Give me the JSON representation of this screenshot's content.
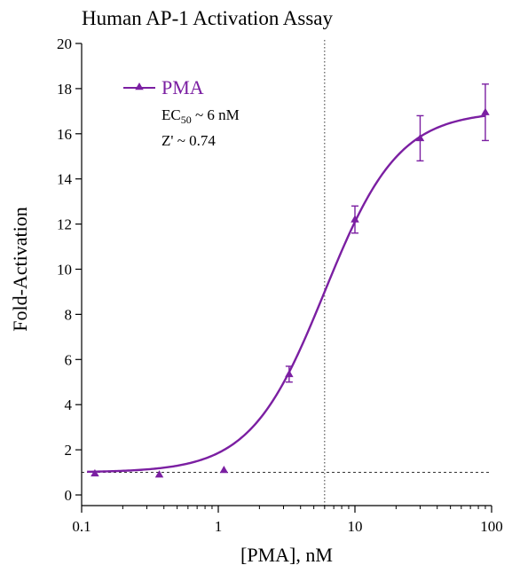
{
  "chart_data": {
    "type": "scatter",
    "title": "Human AP-1 Activation Assay",
    "xlabel": "[PMA], nM",
    "ylabel": "Fold-Activation",
    "x_scale": "log",
    "xlim": [
      0.1,
      100
    ],
    "ylim": [
      0,
      20
    ],
    "x_ticks": [
      {
        "value": 0.1,
        "label": "0.1"
      },
      {
        "value": 1,
        "label": "1"
      },
      {
        "value": 10,
        "label": "10"
      },
      {
        "value": 100,
        "label": "100"
      }
    ],
    "y_ticks": [
      {
        "value": 0,
        "label": "0"
      },
      {
        "value": 2,
        "label": "2"
      },
      {
        "value": 4,
        "label": "4"
      },
      {
        "value": 6,
        "label": "6"
      },
      {
        "value": 8,
        "label": "8"
      },
      {
        "value": 10,
        "label": "10"
      },
      {
        "value": 12,
        "label": "12"
      },
      {
        "value": 14,
        "label": "14"
      },
      {
        "value": 16,
        "label": "16"
      },
      {
        "value": 18,
        "label": "18"
      },
      {
        "value": 20,
        "label": "20"
      }
    ],
    "series": [
      {
        "name": "PMA",
        "color": "#7B1FA2",
        "marker": "triangle",
        "points": [
          {
            "x": 0.125,
            "y": 0.95,
            "err": 0
          },
          {
            "x": 0.37,
            "y": 0.9,
            "err": 0
          },
          {
            "x": 1.1,
            "y": 1.1,
            "err": 0
          },
          {
            "x": 3.3,
            "y": 5.35,
            "err": 0.35
          },
          {
            "x": 10,
            "y": 12.2,
            "err": 0.6
          },
          {
            "x": 30,
            "y": 15.8,
            "err": 1.0
          },
          {
            "x": 90,
            "y": 16.95,
            "err": 1.25
          }
        ],
        "fit": {
          "bottom": 1.0,
          "top": 17.0,
          "ec50": 6,
          "hill": 1.6
        }
      }
    ],
    "reference_lines": {
      "vertical_x": 6,
      "horizontal_y": 1
    },
    "annotations": {
      "ec50_prefix": "EC",
      "ec50_subscript": "50",
      "ec50_value": " ~ 6 nM",
      "zprime": "Z' ~ 0.74"
    },
    "legend_position": "top-left"
  }
}
